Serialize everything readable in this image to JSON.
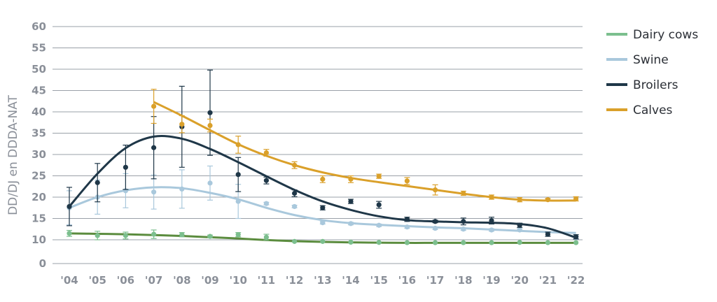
{
  "chart_data": {
    "type": "line",
    "ylabel": "DD/DJ en DDDA-NAT",
    "xlabel": "",
    "x": [
      "'04",
      "'05",
      "'06",
      "'07",
      "'08",
      "'09",
      "'10",
      "'11",
      "'12",
      "'13",
      "'14",
      "'15",
      "'16",
      "'17",
      "'18",
      "'19",
      "'20",
      "'21",
      "'22"
    ],
    "y_ticks_labels": [
      "0",
      "10",
      "15",
      "20",
      "25",
      "30",
      "35",
      "40",
      "45",
      "50",
      "55",
      "60"
    ],
    "ylim": [
      0,
      60
    ],
    "grid": true,
    "legend_position": "right",
    "series": [
      {
        "name": "Dairy cows",
        "color": "#7cbf8e",
        "trend_color": "#5b8c3e",
        "points": [
          11.5,
          11,
          11,
          11.3,
          11.2,
          10.8,
          11.2,
          10.6,
          9.3,
          9.3,
          9,
          8.9,
          8.8,
          8.8,
          8.8,
          8.8,
          8.9,
          8.8,
          8.8
        ],
        "trend": [
          11.5,
          11.4,
          11.3,
          11.1,
          10.9,
          10.6,
          10.3,
          9.9,
          9.4,
          9.1,
          8.9,
          8.8,
          8.7,
          8.7,
          8.7,
          8.7,
          8.7,
          8.7,
          8.7
        ],
        "err": [
          0.7,
          1,
          0.8,
          1,
          0.5,
          0.3,
          0.5,
          0.7,
          0.2,
          0.2,
          0.2,
          0.2,
          0.2,
          0.2,
          0.2,
          0.2,
          0.2,
          0.2,
          0.2
        ]
      },
      {
        "name": "Swine",
        "color": "#a9c8dc",
        "trend_color": "#a9c8dc",
        "points": [
          17.5,
          20,
          21.5,
          21.2,
          21.9,
          23.3,
          19,
          18.5,
          17.8,
          14,
          13.8,
          13.4,
          13,
          12.7,
          12.5,
          12.3,
          12.3,
          null,
          10.5
        ],
        "trend": [
          17.5,
          20,
          21.6,
          22.3,
          22.1,
          21,
          19.5,
          17.5,
          15.8,
          14.6,
          13.9,
          13.5,
          13.2,
          12.9,
          12.7,
          12.4,
          12.1,
          11.8,
          11.6
        ],
        "err": [
          4,
          4,
          4,
          4,
          4.5,
          4,
          4,
          0.3,
          0.3,
          0.3,
          0.3,
          0.3,
          0.3,
          0.3,
          0.3,
          0.3,
          0.3,
          0,
          0.3
        ]
      },
      {
        "name": "Broilers",
        "color": "#1f3748",
        "trend_color": "#1f3748",
        "points": [
          17.8,
          23.4,
          27,
          31.6,
          36.5,
          39.8,
          25.3,
          23.9,
          20.9,
          17.5,
          19,
          18.2,
          14.8,
          14.3,
          14.3,
          14.5,
          13.4,
          11.3,
          10.7
        ],
        "trend": [
          17.8,
          25.5,
          31.5,
          34.2,
          33.7,
          31.3,
          28.2,
          24.9,
          21.7,
          19,
          17,
          15.5,
          14.6,
          14.3,
          14.1,
          14,
          13.7,
          12.7,
          10.5
        ],
        "err": [
          4.5,
          4.5,
          5.2,
          7.3,
          9.5,
          10,
          4,
          0.8,
          0.8,
          0.5,
          0.5,
          0.8,
          0.5,
          0.3,
          0.8,
          0.8,
          0.5,
          0.5,
          0.5
        ]
      },
      {
        "name": "Calves",
        "color": "#daa02a",
        "trend_color": "#daa02a",
        "points": [
          null,
          null,
          null,
          41.3,
          37.1,
          36.8,
          32.3,
          30.4,
          27.5,
          24.2,
          24.2,
          24.9,
          23.8,
          21.7,
          20.9,
          20,
          19.4,
          19.4,
          19.6
        ],
        "trend": [
          null,
          null,
          null,
          42.3,
          39.1,
          35.7,
          32.4,
          29.7,
          27.5,
          25.8,
          24.5,
          23.5,
          22.6,
          21.7,
          20.8,
          20,
          19.4,
          19.2,
          19.2
        ],
        "err": [
          0,
          0,
          0,
          4,
          2,
          1.5,
          2,
          0.8,
          0.8,
          0.8,
          0.8,
          0.5,
          0.8,
          1.2,
          0.5,
          0.5,
          0.5,
          0.3,
          0.5
        ]
      }
    ]
  }
}
